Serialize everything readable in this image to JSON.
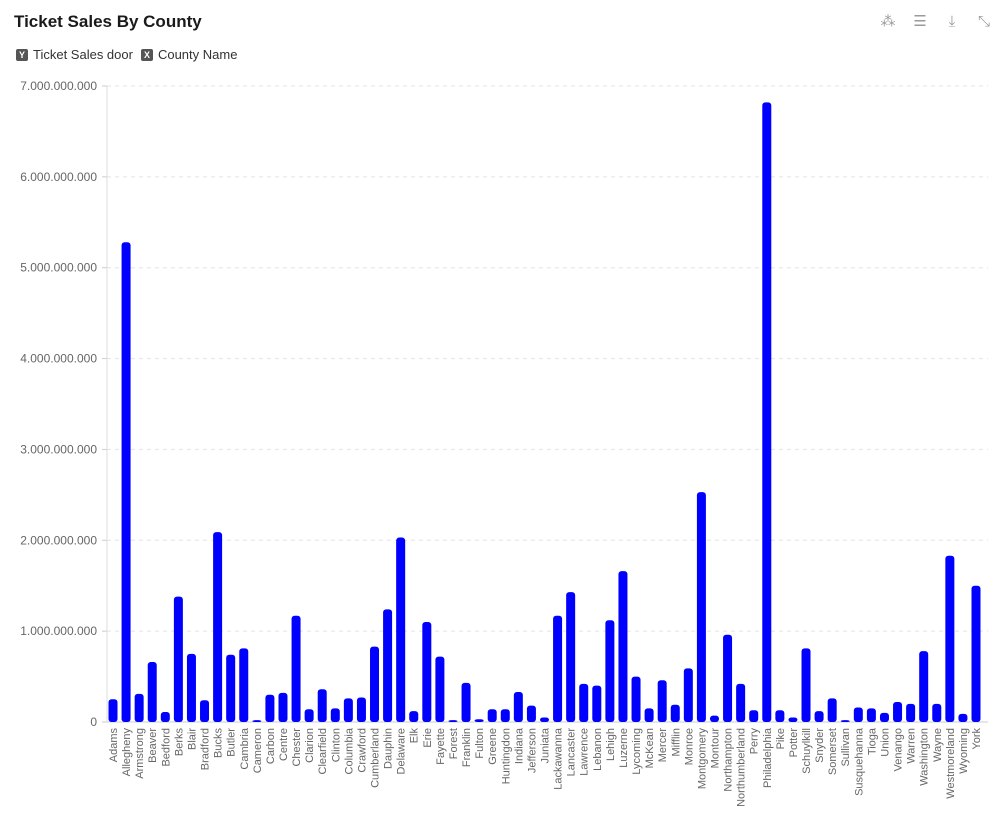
{
  "title": "Ticket Sales By County",
  "toolbar": {
    "icons": [
      "select-cursor-icon",
      "sliders-icon",
      "download-icon",
      "collapse-icon"
    ]
  },
  "legend": [
    {
      "badge": "Y",
      "label": "Ticket Sales door"
    },
    {
      "badge": "X",
      "label": "County Name"
    }
  ],
  "chart_data": {
    "type": "bar",
    "title": "Ticket Sales By County",
    "ylim": [
      0,
      7000000000
    ],
    "yticks": [
      "0",
      "1.000.000.000",
      "2.000.000.000",
      "3.000.000.000",
      "4.000.000.000",
      "5.000.000.000",
      "6.000.000.000",
      "7.000.000.000"
    ],
    "grid": true,
    "bar_color": "#0000ff",
    "categories": [
      "Adams",
      "Allegheny",
      "Armstrong",
      "Beaver",
      "Bedford",
      "Berks",
      "Blair",
      "Bradford",
      "Bucks",
      "Butler",
      "Cambria",
      "Cameron",
      "Carbon",
      "Centre",
      "Chester",
      "Clarion",
      "Clearfield",
      "Clinton",
      "Columbia",
      "Crawford",
      "Cumberland",
      "Dauphin",
      "Delaware",
      "Elk",
      "Erie",
      "Fayette",
      "Forest",
      "Franklin",
      "Fulton",
      "Greene",
      "Huntingdon",
      "Indiana",
      "Jefferson",
      "Juniata",
      "Lackawanna",
      "Lancaster",
      "Lawrence",
      "Lebanon",
      "Lehigh",
      "Luzerne",
      "Lycoming",
      "McKean",
      "Mercer",
      "Mifflin",
      "Monroe",
      "Montgomery",
      "Montour",
      "Northampton",
      "Northumberland",
      "Perry",
      "Philadelphia",
      "Pike",
      "Potter",
      "Schuylkill",
      "Snyder",
      "Somerset",
      "Sullivan",
      "Susquehanna",
      "Tioga",
      "Union",
      "Venango",
      "Warren",
      "Washington",
      "Wayne",
      "Westmoreland",
      "Wyoming",
      "York"
    ],
    "values": [
      250000000,
      5280000000,
      310000000,
      660000000,
      110000000,
      1380000000,
      750000000,
      240000000,
      2090000000,
      740000000,
      810000000,
      20000000,
      300000000,
      320000000,
      1170000000,
      140000000,
      360000000,
      150000000,
      260000000,
      270000000,
      830000000,
      1240000000,
      2030000000,
      120000000,
      1100000000,
      720000000,
      20000000,
      430000000,
      30000000,
      140000000,
      140000000,
      330000000,
      180000000,
      50000000,
      1170000000,
      1430000000,
      420000000,
      400000000,
      1120000000,
      1660000000,
      500000000,
      150000000,
      460000000,
      190000000,
      590000000,
      2530000000,
      70000000,
      960000000,
      420000000,
      130000000,
      6820000000,
      130000000,
      50000000,
      810000000,
      120000000,
      260000000,
      20000000,
      160000000,
      150000000,
      100000000,
      220000000,
      200000000,
      780000000,
      200000000,
      1830000000,
      90000000,
      1500000000
    ]
  }
}
